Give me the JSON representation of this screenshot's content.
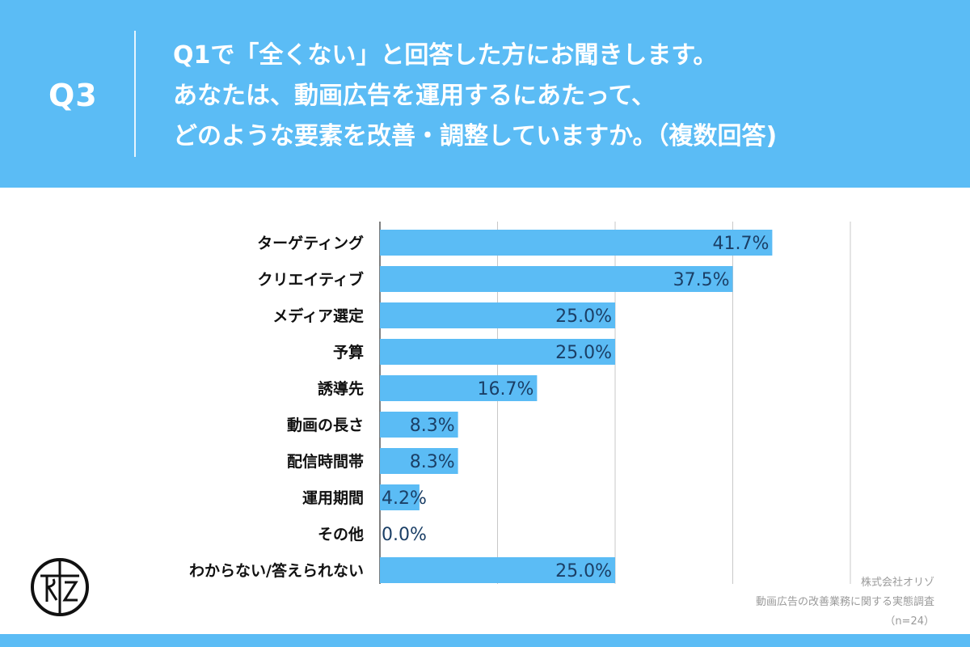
{
  "header": {
    "qnum": "Q3",
    "lines": [
      "Q1で「全くない」と回答した方にお聞きします。",
      "あなたは、動画広告を運用するにあたって、",
      "どのような要素を改善・調整していますか。（複数回答)"
    ]
  },
  "colors": {
    "background": "#5bbcf5",
    "bar": "#5bbcf5",
    "value_text": "#1b3f66",
    "grid": "#c8c8c8"
  },
  "chart_data": {
    "type": "bar",
    "orientation": "horizontal",
    "categories": [
      "ターゲティング",
      "クリエイティブ",
      "メディア選定",
      "予算",
      "誘導先",
      "動画の長さ",
      "配信時間帯",
      "運用期間",
      "その他",
      "わからない/答えられない"
    ],
    "values": [
      41.7,
      37.5,
      25.0,
      25.0,
      16.7,
      8.3,
      8.3,
      4.2,
      0.0,
      25.0
    ],
    "value_labels": [
      "41.7%",
      "37.5%",
      "25.0%",
      "25.0%",
      "16.7%",
      "8.3%",
      "8.3%",
      "4.2%",
      "0.0%",
      "25.0%"
    ],
    "xlim": [
      0,
      50
    ],
    "grid": true,
    "gridline_values": [
      0,
      12.5,
      25,
      37.5,
      50
    ]
  },
  "logo": {
    "name": "orizo-logo",
    "text": "RZ"
  },
  "footnote": {
    "company": "株式会社オリゾ",
    "survey": "動画広告の改善業務に関する実態調査",
    "sample": "（n=24）"
  }
}
